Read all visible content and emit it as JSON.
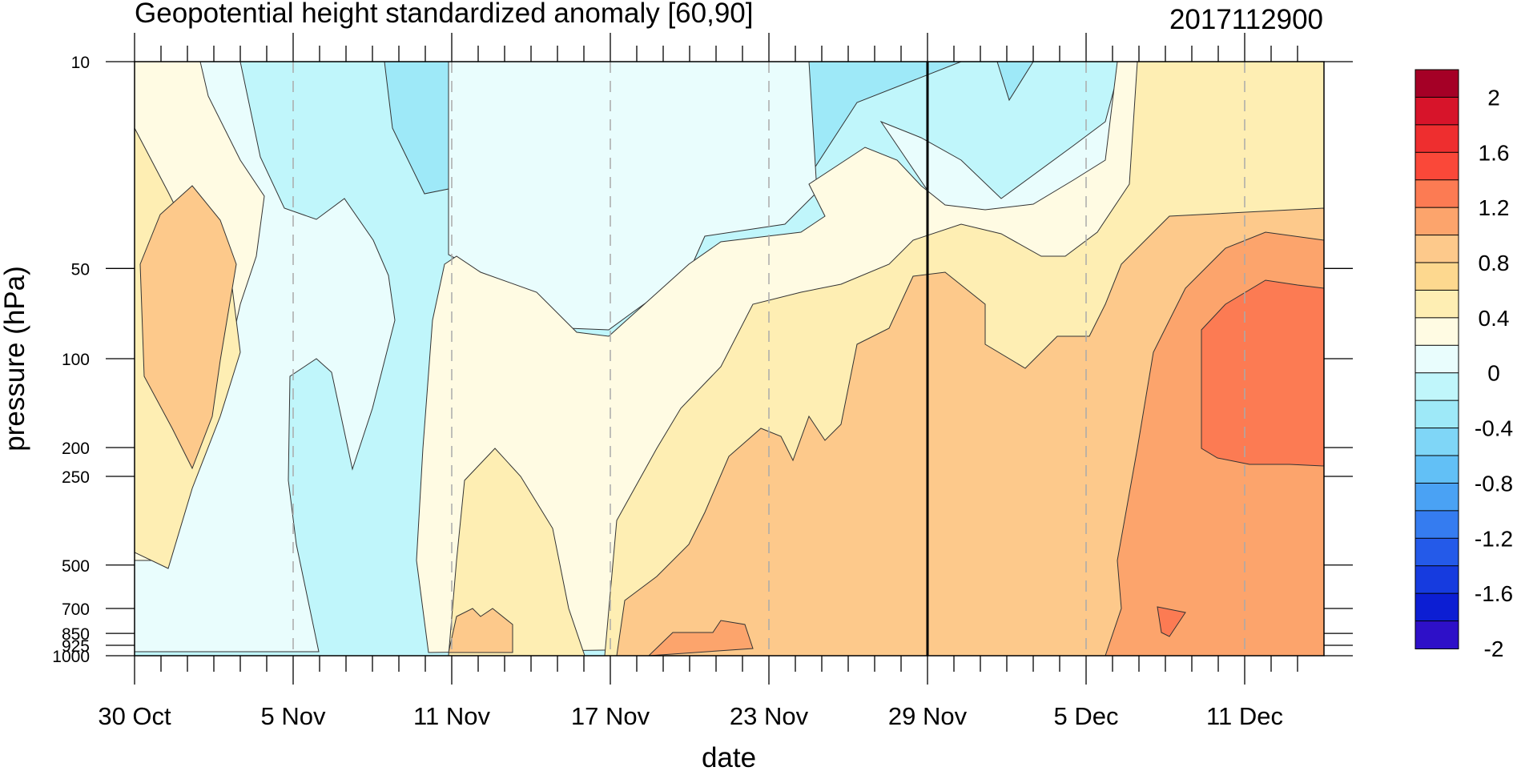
{
  "chart_data": {
    "type": "heatmap",
    "title": "Geopotential height standardized anomaly [60,90]",
    "run_label": "2017112900",
    "xlabel": "date",
    "ylabel": "pressure (hPa)",
    "x_ticks": [
      "30 Oct",
      "5 Nov",
      "11 Nov",
      "17 Nov",
      "23 Nov",
      "29 Nov",
      "5 Dec",
      "11 Dec"
    ],
    "x_tick_days": [
      0,
      6,
      12,
      18,
      24,
      30,
      36,
      42
    ],
    "x_range_days": [
      0,
      45
    ],
    "analysis_day": 30,
    "y_ticks": [
      "10",
      "50",
      "100",
      "200",
      "250",
      "500",
      "700",
      "850",
      "925",
      "1000"
    ],
    "y_tick_values": [
      10,
      50,
      100,
      200,
      250,
      500,
      700,
      850,
      925,
      1000
    ],
    "y_range": [
      1000,
      10
    ],
    "y_scale": "custom-pressure",
    "colorbar": {
      "labels": [
        "2",
        "1.6",
        "1.2",
        "0.8",
        "0.4",
        "0",
        "-0.4",
        "-0.8",
        "-1.2",
        "-1.6",
        "-2"
      ],
      "colors": [
        "#a50026",
        "#d7142a",
        "#ee2e2f",
        "#fa4839",
        "#fc7b53",
        "#fca46c",
        "#fdc98b",
        "#fdd88f",
        "#feeeb3",
        "#fffbe3",
        "#e9fdfd",
        "#c0f6fb",
        "#9ee9f8",
        "#7fd6f7",
        "#62c0f6",
        "#4aa2f4",
        "#357cf0",
        "#245ae9",
        "#163bdf",
        "#0c1ed3",
        "#2e10c8"
      ]
    },
    "grid": "dashed vertical at date ticks",
    "levels_shown": {
      "min": -0.8,
      "max": 1.2,
      "interval": 0.2
    }
  }
}
